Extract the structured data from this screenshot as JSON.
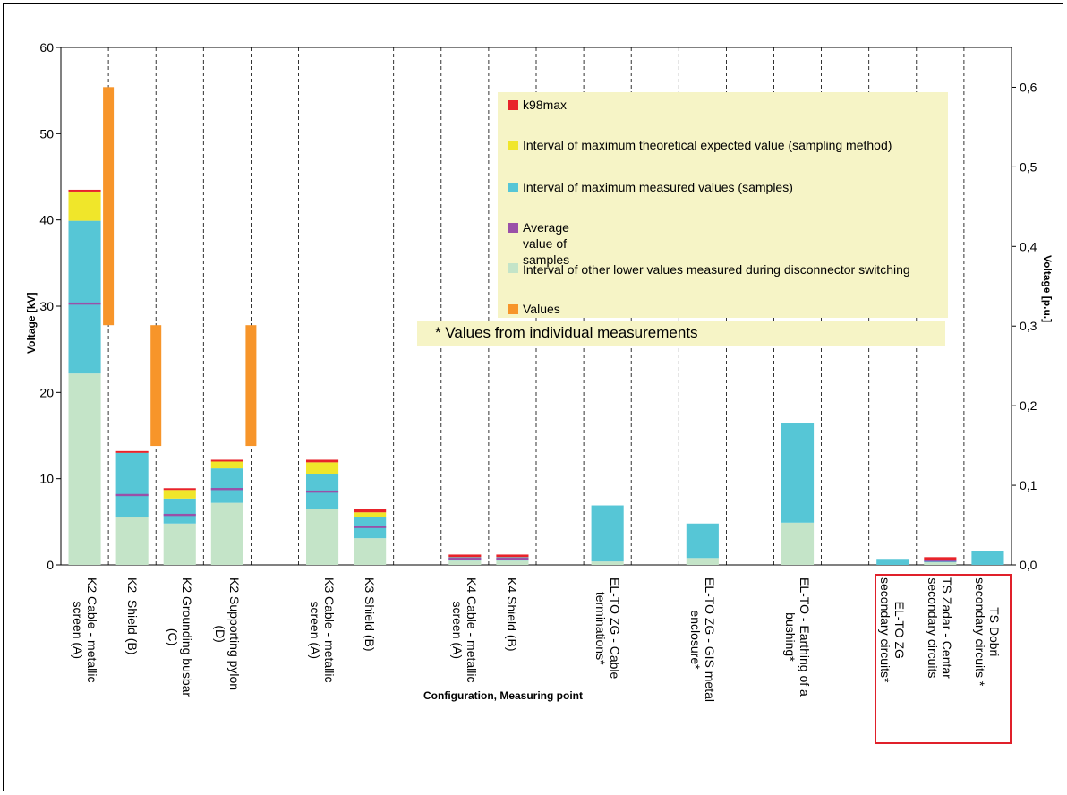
{
  "chart_data": {
    "type": "bar",
    "xlabel": "Configuration, Measuring point",
    "ylabel": "Voltage [kV]",
    "y2label": "Voltage [p.u.]",
    "ylim": [
      0,
      60
    ],
    "y2lim": [
      0,
      0.65
    ],
    "yticks": [
      0,
      10,
      20,
      30,
      40,
      50,
      60
    ],
    "y2ticks": [
      "0,0",
      "0,1",
      "0,2",
      "0,3",
      "0,4",
      "0,5",
      "0,6"
    ],
    "y2tick_values": [
      0,
      0.1,
      0.2,
      0.3,
      0.4,
      0.5,
      0.6
    ],
    "grid": "vertical dashed",
    "categories": [
      "K2 Cable - metallic\nscreen (A)",
      "K2  Shield (B)",
      "K2 Grounding busbar\n(C)",
      "K2 Supporting pylon\n(D)",
      "",
      "K3 Cable - metallic\nscreen (A)",
      "K3 Shield (B)",
      "",
      "K4 Cable - metallic\nscreen (A)",
      "K4 Shield (B)",
      "",
      "EL-TO ZG - Cable\nterminations*",
      "",
      "EL-TO ZG - GIS metal\nenclosure*",
      "",
      "EL-TO - Earthing of a\nbushing*",
      "",
      "EL-TO ZG\nsecondary circuits*",
      "TS Zadar - Centar\nsecondary circuits",
      "TS Dobri\nsecondary circuits *"
    ],
    "series": [
      {
        "name": "Interval of other lower values measured during disconnector switching",
        "color": "#c4e4c8",
        "values": [
          22.2,
          5.5,
          4.8,
          7.2,
          null,
          6.5,
          3.1,
          null,
          0.5,
          0.5,
          null,
          0.4,
          null,
          0.8,
          null,
          4.9,
          null,
          0,
          0.3,
          0
        ]
      },
      {
        "name": "Interval of maximum measured values (samples)",
        "color": "#56c6d6",
        "values": [
          [
            22.2,
            39.9
          ],
          [
            5.5,
            13.0
          ],
          [
            4.8,
            7.7
          ],
          [
            7.2,
            11.2
          ],
          null,
          [
            6.5,
            10.5
          ],
          [
            3.1,
            5.6
          ],
          null,
          [
            0.5,
            0.9
          ],
          [
            0.5,
            0.9
          ],
          null,
          [
            0.4,
            6.9
          ],
          null,
          [
            0.8,
            4.8
          ],
          null,
          [
            4.9,
            16.4
          ],
          null,
          [
            0,
            0.7
          ],
          [
            0.3,
            0.6
          ],
          [
            0,
            1.6
          ]
        ]
      },
      {
        "name": "Interval of maximum theoretical expected value (sampling method)",
        "color": "#f0e62a",
        "values": [
          [
            39.9,
            43.3
          ],
          null,
          [
            7.7,
            8.7
          ],
          [
            11.2,
            12.0
          ],
          null,
          [
            10.5,
            11.9
          ],
          [
            5.6,
            6.1
          ],
          null,
          null,
          null,
          null,
          null,
          null,
          null,
          null,
          null,
          null,
          null,
          null,
          null
        ]
      },
      {
        "name": "k98max",
        "color": "#e8232a",
        "values": [
          43.5,
          13.2,
          8.9,
          12.2,
          null,
          12.2,
          6.5,
          null,
          1.2,
          1.2,
          null,
          null,
          null,
          null,
          null,
          null,
          null,
          null,
          0.9,
          null
        ]
      },
      {
        "name": "Average value of samples",
        "color": "#9a50a8",
        "values": [
          30.3,
          8.1,
          5.8,
          8.8,
          null,
          8.5,
          4.4,
          null,
          0.7,
          0.7,
          null,
          null,
          null,
          null,
          null,
          null,
          null,
          null,
          0.5,
          null
        ]
      },
      {
        "name": "Values according to model",
        "color": "#f7952a",
        "values": [
          [
            27.8,
            55.4
          ],
          [
            13.8,
            27.8
          ],
          null,
          [
            13.8,
            27.8
          ],
          null,
          null,
          null,
          null,
          null,
          null,
          null,
          null,
          null,
          null,
          null,
          null,
          null,
          null,
          null,
          null
        ]
      }
    ],
    "legend": {
      "placement": "top-right",
      "items": [
        {
          "label": "k98max",
          "color": "#e8232a"
        },
        {
          "label": "Interval of maximum theoretical expected value (sampling method)",
          "color": "#f0e62a"
        },
        {
          "label": "Interval of maximum measured values (samples)",
          "color": "#56c6d6"
        },
        {
          "label": "Average value of samples",
          "color": "#9a50a8"
        },
        {
          "label": "Interval of other lower values measured during disconnector switching",
          "color": "#c4e4c8"
        },
        {
          "label": "Values according to model",
          "color": "#f7952a"
        }
      ]
    },
    "annotation": "* Values from individual measurements"
  }
}
